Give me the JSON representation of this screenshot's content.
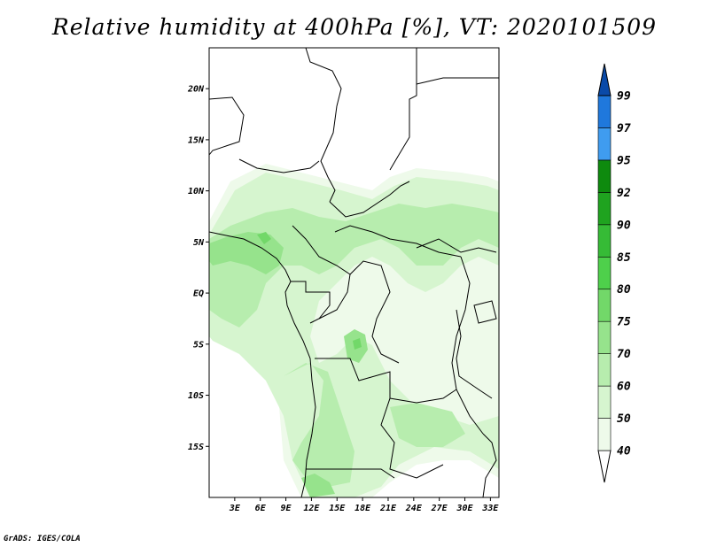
{
  "title": "Relative humidity at 400hPa [%], VT: 2020101509",
  "credit": "GrADS: IGES/COLA",
  "map": {
    "variable": "Relative humidity",
    "level": "400hPa",
    "units": "%",
    "valid_time": "2020101509",
    "lon_range": [
      0,
      34
    ],
    "lat_range": [
      -20,
      24
    ],
    "lon_ticks": [
      {
        "value": 3,
        "label": "3E"
      },
      {
        "value": 6,
        "label": "6E"
      },
      {
        "value": 9,
        "label": "9E"
      },
      {
        "value": 12,
        "label": "12E"
      },
      {
        "value": 15,
        "label": "15E"
      },
      {
        "value": 18,
        "label": "18E"
      },
      {
        "value": 21,
        "label": "21E"
      },
      {
        "value": 24,
        "label": "24E"
      },
      {
        "value": 27,
        "label": "27E"
      },
      {
        "value": 30,
        "label": "30E"
      },
      {
        "value": 33,
        "label": "33E"
      }
    ],
    "lat_ticks": [
      {
        "value": 20,
        "label": "20N"
      },
      {
        "value": 15,
        "label": "15N"
      },
      {
        "value": 10,
        "label": "10N"
      },
      {
        "value": 5,
        "label": "5N"
      },
      {
        "value": 0,
        "label": "EQ"
      },
      {
        "value": -5,
        "label": "5S"
      },
      {
        "value": -10,
        "label": "10S"
      },
      {
        "value": -15,
        "label": "15S"
      }
    ]
  },
  "colorbar": {
    "levels": [
      {
        "label": "40",
        "color": "#eefaea"
      },
      {
        "label": "50",
        "color": "#d6f5cf"
      },
      {
        "label": "60",
        "color": "#b7edae"
      },
      {
        "label": "70",
        "color": "#96e38c"
      },
      {
        "label": "75",
        "color": "#72d869"
      },
      {
        "label": "80",
        "color": "#4ed04b"
      },
      {
        "label": "85",
        "color": "#36bb36"
      },
      {
        "label": "90",
        "color": "#1fa31f"
      },
      {
        "label": "92",
        "color": "#0e8a0e"
      },
      {
        "label": "95",
        "color": "#3f9cf0"
      },
      {
        "label": "97",
        "color": "#1f78dc"
      },
      {
        "label": "99",
        "color": "#0a56b6"
      }
    ],
    "below_color": "#ffffff",
    "above_color": "#0a4aa8"
  }
}
